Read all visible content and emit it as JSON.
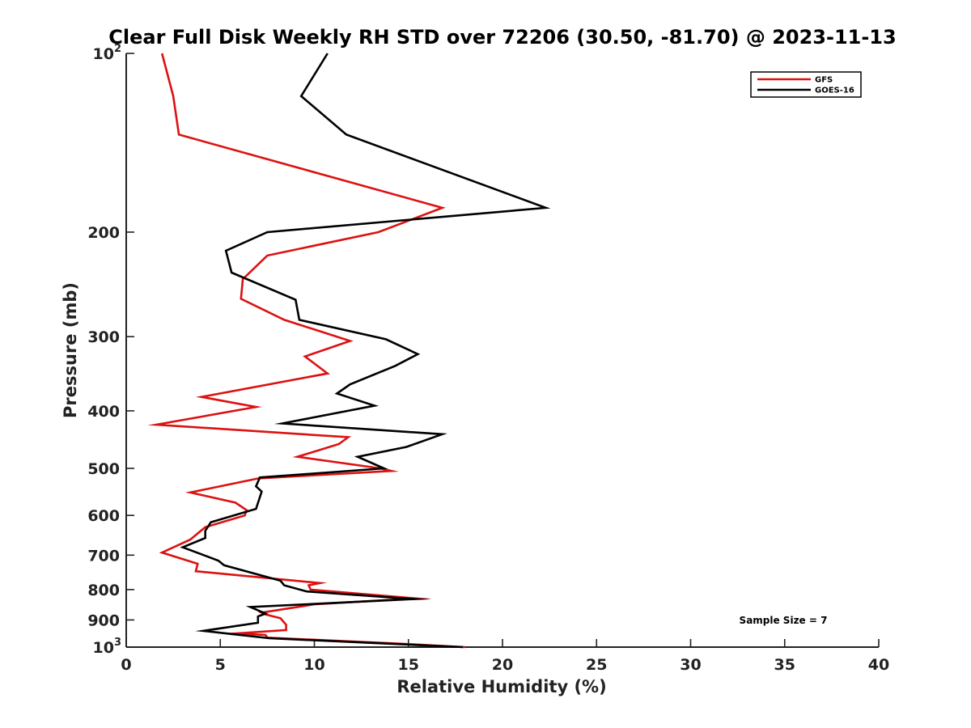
{
  "chart_data": {
    "type": "line",
    "title": "Clear Full Disk Weekly RH STD over 72206 (30.50, -81.70) @ 2023-11-13",
    "xlabel": "Relative Humidity (%)",
    "ylabel": "Pressure (mb)",
    "xlim": [
      0,
      40
    ],
    "ylim": [
      100,
      1000
    ],
    "y_scale": "log",
    "y_reversed": true,
    "grid": false,
    "legend_position": "top-right",
    "x_ticks": [
      {
        "value": 0,
        "label": "0"
      },
      {
        "value": 5,
        "label": "5"
      },
      {
        "value": 10,
        "label": "10"
      },
      {
        "value": 15,
        "label": "15"
      },
      {
        "value": 20,
        "label": "20"
      },
      {
        "value": 25,
        "label": "25"
      },
      {
        "value": 30,
        "label": "30"
      },
      {
        "value": 35,
        "label": "35"
      },
      {
        "value": 40,
        "label": "40"
      }
    ],
    "y_ticks": [
      {
        "value": 100,
        "label": "10",
        "sup": "2"
      },
      {
        "value": 200,
        "label": "200",
        "sup": ""
      },
      {
        "value": 300,
        "label": "300",
        "sup": ""
      },
      {
        "value": 400,
        "label": "400",
        "sup": ""
      },
      {
        "value": 500,
        "label": "500",
        "sup": ""
      },
      {
        "value": 600,
        "label": "600",
        "sup": ""
      },
      {
        "value": 700,
        "label": "700",
        "sup": ""
      },
      {
        "value": 800,
        "label": "800",
        "sup": ""
      },
      {
        "value": 900,
        "label": "900",
        "sup": ""
      },
      {
        "value": 1000,
        "label": "10",
        "sup": "3"
      }
    ],
    "annotation": "Sample Size = 7",
    "series": [
      {
        "name": "GFS",
        "color": "#dd1111",
        "points": [
          [
            1.9,
            100
          ],
          [
            2.5,
            118
          ],
          [
            2.8,
            137
          ],
          [
            16.8,
            182
          ],
          [
            13.4,
            200
          ],
          [
            7.5,
            219
          ],
          [
            6.2,
            240
          ],
          [
            6.1,
            259
          ],
          [
            8.4,
            281
          ],
          [
            11.9,
            305
          ],
          [
            9.5,
            324
          ],
          [
            10.7,
            346
          ],
          [
            4.0,
            379
          ],
          [
            6.9,
            394
          ],
          [
            1.6,
            422
          ],
          [
            11.8,
            443
          ],
          [
            11.3,
            455
          ],
          [
            9.1,
            478
          ],
          [
            13.5,
            500
          ],
          [
            14.1,
            505
          ],
          [
            7.0,
            520
          ],
          [
            3.4,
            549
          ],
          [
            5.8,
            571
          ],
          [
            6.4,
            588
          ],
          [
            6.3,
            600
          ],
          [
            4.2,
            628
          ],
          [
            3.4,
            659
          ],
          [
            1.9,
            693
          ],
          [
            3.8,
            724
          ],
          [
            3.7,
            745
          ],
          [
            10.3,
            780
          ],
          [
            9.7,
            787
          ],
          [
            9.8,
            800
          ],
          [
            15.4,
            828
          ],
          [
            10.0,
            847
          ],
          [
            7.2,
            875
          ],
          [
            7.4,
            881
          ],
          [
            8.2,
            894
          ],
          [
            8.5,
            917
          ],
          [
            8.5,
            936
          ],
          [
            5.9,
            948
          ],
          [
            7.4,
            954
          ],
          [
            7.5,
            964
          ],
          [
            14.6,
            987
          ],
          [
            18.0,
            1000
          ]
        ]
      },
      {
        "name": "GOES-16",
        "color": "#000000",
        "points": [
          [
            10.7,
            100
          ],
          [
            9.3,
            118
          ],
          [
            11.7,
            137
          ],
          [
            22.3,
            182
          ],
          [
            7.5,
            200
          ],
          [
            5.3,
            215
          ],
          [
            5.6,
            234
          ],
          [
            9.0,
            260
          ],
          [
            9.2,
            281
          ],
          [
            13.8,
            303
          ],
          [
            15.5,
            321
          ],
          [
            14.3,
            336
          ],
          [
            11.9,
            361
          ],
          [
            11.2,
            374
          ],
          [
            13.2,
            392
          ],
          [
            8.3,
            420
          ],
          [
            16.8,
            438
          ],
          [
            14.9,
            460
          ],
          [
            12.3,
            478
          ],
          [
            13.7,
            500
          ],
          [
            7.1,
            518
          ],
          [
            6.9,
            536
          ],
          [
            7.2,
            547
          ],
          [
            6.9,
            585
          ],
          [
            4.5,
            616
          ],
          [
            4.2,
            637
          ],
          [
            4.2,
            655
          ],
          [
            3.0,
            679
          ],
          [
            4.9,
            715
          ],
          [
            5.2,
            728
          ],
          [
            8.2,
            773
          ],
          [
            8.4,
            787
          ],
          [
            9.6,
            806
          ],
          [
            15.3,
            830
          ],
          [
            6.6,
            856
          ],
          [
            7.4,
            878
          ],
          [
            7.0,
            888
          ],
          [
            7.0,
            910
          ],
          [
            4.1,
            939
          ],
          [
            5.4,
            949
          ],
          [
            7.6,
            966
          ],
          [
            17.9,
            1000
          ]
        ]
      }
    ]
  }
}
